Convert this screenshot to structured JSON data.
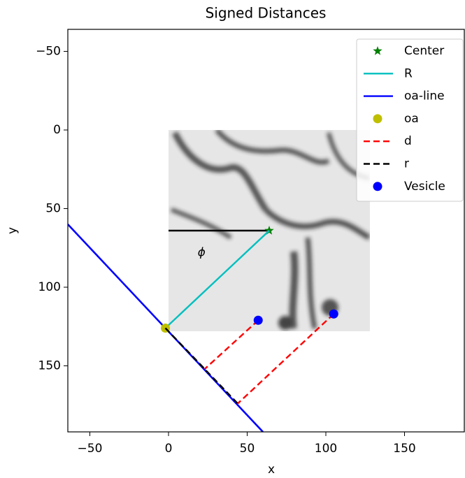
{
  "chart_data": {
    "type": "line",
    "title": "Signed Distances",
    "x_label": "x",
    "y_label": "y",
    "xlim": [
      -64,
      188
    ],
    "ylim": [
      192,
      -64
    ],
    "xticks": [
      {
        "value": -50,
        "label": "−50"
      },
      0,
      50,
      100,
      150
    ],
    "yticks": [
      {
        "value": -50,
        "label": "−50"
      },
      0,
      50,
      100,
      150
    ],
    "grid": false,
    "legend": "upper right",
    "image": {
      "extent": [
        0,
        128,
        0,
        128
      ]
    },
    "series": [
      {
        "color": "#0000ff",
        "style": "solid",
        "x": [
          -64,
          60
        ],
        "y": [
          60,
          192
        ]
      },
      {
        "color": "#000000",
        "style": "solid",
        "x": [
          0,
          64
        ],
        "y": [
          64,
          64
        ]
      },
      {
        "name": "Center",
        "color": "#008000",
        "marker": "star",
        "x": [
          64
        ],
        "y": [
          64
        ]
      },
      {
        "name": "R",
        "color": "#00bfbf",
        "style": "solid",
        "x": [
          -2,
          64
        ],
        "y": [
          126,
          64
        ]
      },
      {
        "name": "oa-line",
        "color": "#0000ff",
        "style": "solid",
        "x": [
          -64,
          60
        ],
        "y": [
          60,
          192
        ]
      },
      {
        "name": "oa",
        "color": "#bfbf00",
        "marker": "circle",
        "x": [
          -2
        ],
        "y": [
          126
        ]
      },
      {
        "name": "d",
        "color": "#ff0000",
        "style": "dashed",
        "x": [
          57,
          23,
          null,
          105,
          44
        ],
        "y": [
          121,
          152,
          null,
          117,
          174
        ]
      },
      {
        "name": "r",
        "color": "#000000",
        "style": "dashed",
        "x": [
          -2,
          23,
          null,
          -2,
          44
        ],
        "y": [
          126,
          152,
          null,
          126,
          174
        ]
      },
      {
        "name": "Vesicle",
        "color": "#0000ff",
        "marker": "circle",
        "x": [
          57,
          105
        ],
        "y": [
          121,
          117
        ]
      }
    ],
    "annotations": [
      {
        "text": "ϕ",
        "x": 21,
        "y": 78
      }
    ]
  }
}
